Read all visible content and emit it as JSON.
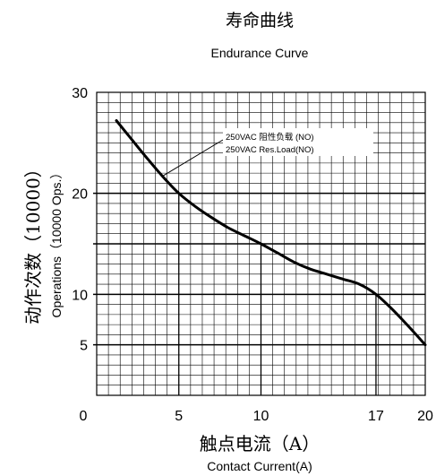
{
  "chart_data": {
    "type": "line",
    "title_cn": "寿命曲线",
    "title_en": "Endurance Curve",
    "ylabel_cn": "动作次数（10000）",
    "ylabel_en": "Operations（10000 Ops.）",
    "xlabel_cn": "触点电流（A）",
    "xlabel_en": "Contact Current(A)",
    "xlim": [
      0,
      20
    ],
    "ylim": [
      0,
      30
    ],
    "grid": true,
    "x_ticks": [
      {
        "value": 0,
        "label": "0"
      },
      {
        "value": 5,
        "label": "5"
      },
      {
        "value": 10,
        "label": "10"
      },
      {
        "value": 17,
        "label": "17"
      },
      {
        "value": 20,
        "label": "20"
      }
    ],
    "y_ticks": [
      {
        "value": 5,
        "label": "5"
      },
      {
        "value": 10,
        "label": "10"
      },
      {
        "value": 20,
        "label": "20"
      },
      {
        "value": 30,
        "label": "30"
      }
    ],
    "reference_lines": [
      {
        "x": 5,
        "y": 20
      },
      {
        "x": 10,
        "y": 15
      },
      {
        "x": 17,
        "y": 10
      },
      {
        "x": 20,
        "y": 5
      }
    ],
    "series": [
      {
        "name_cn": "250VAC 阻性负载 (NO)",
        "name_en": "250VAC Res.Load(NO)",
        "color": "#000000",
        "points": [
          [
            1.2,
            27.2
          ],
          [
            2,
            25.6
          ],
          [
            3,
            23.6
          ],
          [
            4,
            21.7
          ],
          [
            5,
            20.0
          ],
          [
            6,
            18.7
          ],
          [
            7,
            17.6
          ],
          [
            8,
            16.6
          ],
          [
            9,
            15.8
          ],
          [
            10,
            15.0
          ],
          [
            11,
            14.1
          ],
          [
            12,
            13.2
          ],
          [
            13,
            12.5
          ],
          [
            14,
            12.0
          ],
          [
            15,
            11.5
          ],
          [
            16,
            11.0
          ],
          [
            17,
            10.0
          ],
          [
            18,
            8.5
          ],
          [
            19,
            6.8
          ],
          [
            20,
            5.0
          ]
        ]
      }
    ],
    "annotation": {
      "x": 4.0,
      "y": 21.7
    }
  }
}
